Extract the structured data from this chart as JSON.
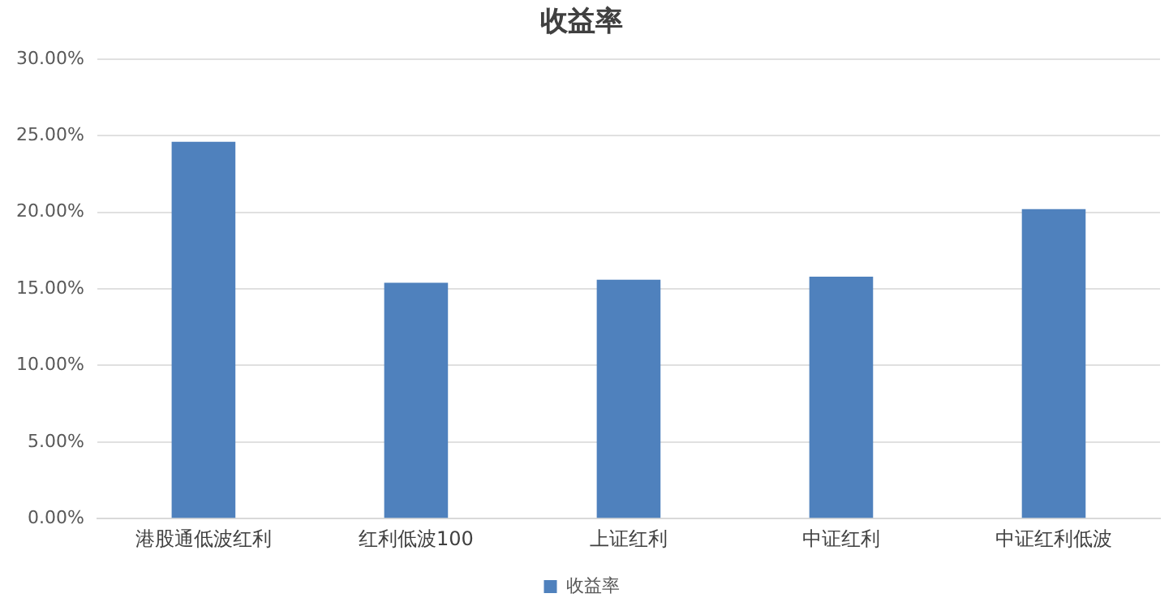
{
  "chart_data": {
    "type": "bar",
    "title": "收益率",
    "categories": [
      "港股通低波红利",
      "红利低波100",
      "上证红利",
      "中证红利",
      "中证红利低波"
    ],
    "series": [
      {
        "name": "收益率",
        "color": "#4f81bd",
        "values": [
          24.6,
          15.4,
          15.6,
          15.8,
          20.2
        ]
      }
    ],
    "ylim": [
      0,
      30
    ],
    "yticks": [
      {
        "value": 0,
        "label": "0.00%"
      },
      {
        "value": 5,
        "label": "5.00%"
      },
      {
        "value": 10,
        "label": "10.00%"
      },
      {
        "value": 15,
        "label": "15.00%"
      },
      {
        "value": 20,
        "label": "20.00%"
      },
      {
        "value": 25,
        "label": "25.00%"
      },
      {
        "value": 30,
        "label": "30.00%"
      }
    ],
    "grid": "y",
    "legend": "bottom"
  }
}
